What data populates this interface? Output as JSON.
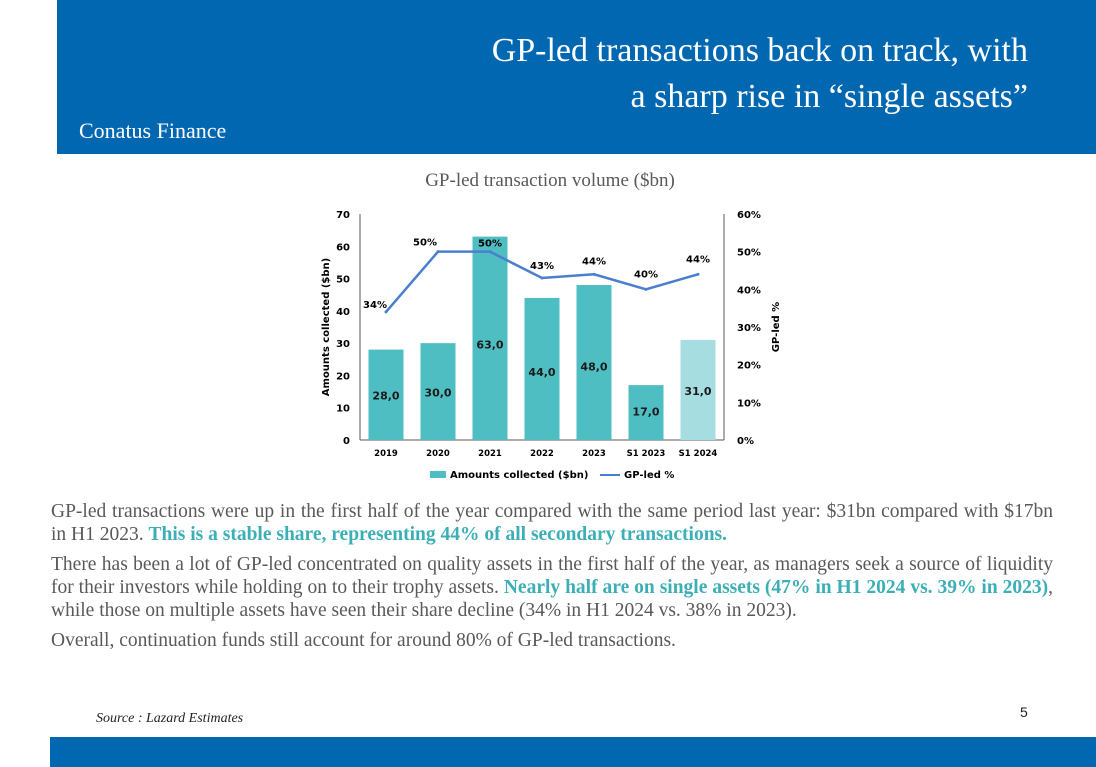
{
  "header": {
    "title_line1": "GP-led transactions back on track, with",
    "title_line2": "a sharp rise in “single assets”",
    "brand": "Conatus Finance",
    "color": "#0067B0"
  },
  "chart_data": {
    "type": "bar",
    "title": "GP-led transaction volume ($bn)",
    "categories": [
      "2019",
      "2020",
      "2021",
      "2022",
      "2023",
      "S1 2023",
      "S1 2024"
    ],
    "series": [
      {
        "name": "Amounts collected ($bn)",
        "type": "bar",
        "values": [
          28.0,
          30.0,
          63.0,
          44.0,
          48.0,
          17.0,
          31.0
        ],
        "labels": [
          "28,0",
          "30,0",
          "63,0",
          "44,0",
          "48,0",
          "17,0",
          "31,0"
        ],
        "color": "#4FBEC3",
        "highlight_color": "#A6DDE1"
      },
      {
        "name": "GP-led %",
        "type": "line",
        "axis": "right",
        "values": [
          34,
          50,
          50,
          43,
          44,
          40,
          44
        ],
        "labels": [
          "34%",
          "50%",
          "50%",
          "43%",
          "44%",
          "40%",
          "44%"
        ],
        "color": "#4A7FCF"
      }
    ],
    "ylabel": "Amounts collected ($bn)",
    "ylabel_right": "GP-led %",
    "ylim": [
      0,
      70
    ],
    "yticks": [
      "0",
      "10",
      "20",
      "30",
      "40",
      "50",
      "60",
      "70"
    ],
    "ylim_right": [
      0,
      60
    ],
    "yticks_right": [
      "0%",
      "10%",
      "20%",
      "30%",
      "40%",
      "50%",
      "60%"
    ],
    "legend_position": "bottom",
    "grid": false
  },
  "body": {
    "p1_text": "GP-led transactions were up in the first half of the year compared with the same period last year: $31bn compared with $17bn in H1 2023. ",
    "p1_highlight": "This is a stable share, representing 44% of all secondary transactions.",
    "p2_text": "There has been a lot of GP-led concentrated on quality assets in the first half of the year, as managers seek a source of liquidity for their investors while holding on to their trophy assets. ",
    "p2_highlight": "Nearly half are on single assets (47% in H1 2024 vs. 39% in 2023)",
    "p2_tail": ", while those on multiple assets have seen their share decline (34% in H1 2024 vs. 38% in 2023).",
    "p3_text": "Overall, continuation funds still account for around 80% of GP-led transactions.",
    "highlight_color": "#3BAFB5"
  },
  "footer": {
    "source": "Source : Lazard Estimates",
    "page_number": "5"
  }
}
